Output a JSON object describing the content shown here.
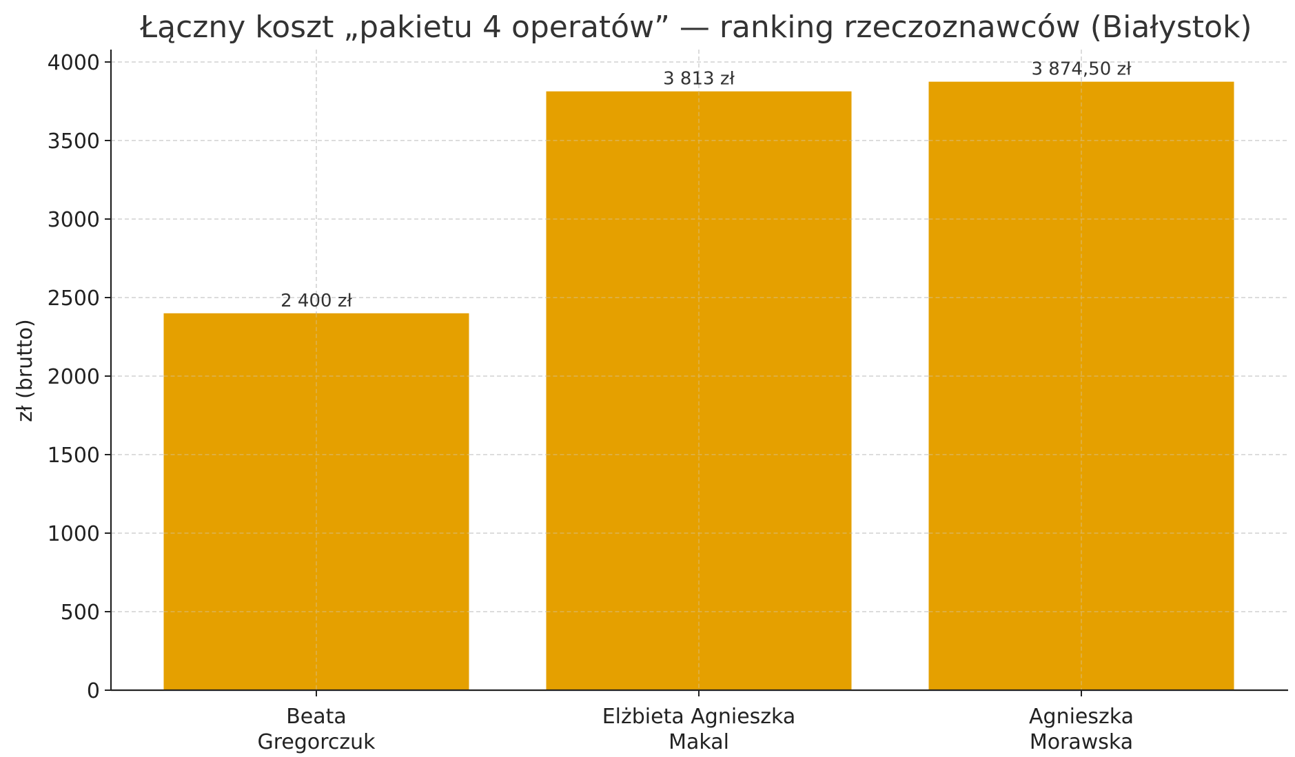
{
  "chart_data": {
    "type": "bar",
    "title": "Łączny koszt „pakietu 4 operatów” — ranking rzeczoznawców (Białystok)",
    "xlabel": "",
    "ylabel": "zł (brutto)",
    "ylim": [
      0,
      4000
    ],
    "yticks": [
      0,
      500,
      1000,
      1500,
      2000,
      2500,
      3000,
      3500,
      4000
    ],
    "grid": true,
    "categories": [
      [
        "Beata",
        "Gregorczuk"
      ],
      [
        "Elżbieta Agnieszka",
        "Makal"
      ],
      [
        "Agnieszka",
        "Morawska"
      ]
    ],
    "values": [
      2400,
      3813,
      3874.5
    ],
    "value_labels": [
      "2 400 zł",
      "3 813 zł",
      "3 874,50 zł"
    ],
    "bar_color": "#E5A000"
  }
}
